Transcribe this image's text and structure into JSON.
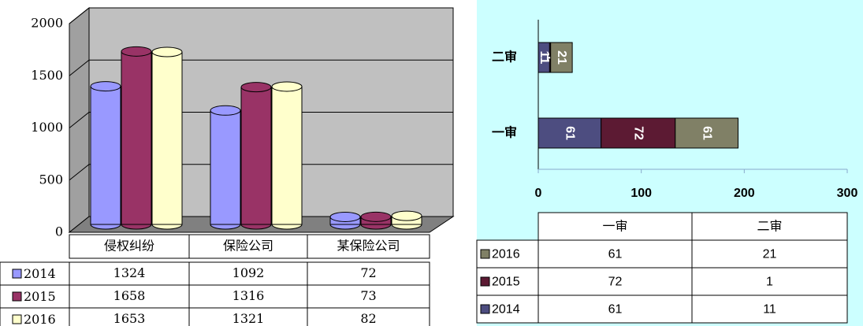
{
  "chart_data": [
    {
      "type": "bar3d",
      "categories": [
        "侵权纠纷",
        "保险公司",
        "某保险公司"
      ],
      "series": [
        {
          "name": "2014",
          "color": "#9999ff",
          "values": [
            1324,
            1092,
            72
          ]
        },
        {
          "name": "2015",
          "color": "#993366",
          "values": [
            1658,
            1316,
            73
          ]
        },
        {
          "name": "2016",
          "color": "#ffffcc",
          "values": [
            1653,
            1321,
            82
          ]
        }
      ],
      "ylim": [
        0,
        2000
      ],
      "yticks": [
        0,
        500,
        1000,
        1500,
        2000
      ],
      "grid": true
    },
    {
      "type": "stacked_hbar",
      "categories": [
        "一审",
        "二审"
      ],
      "series": [
        {
          "name": "2014",
          "color": "#4d4d80",
          "values": [
            61,
            11
          ]
        },
        {
          "name": "2015",
          "color": "#5c1a33",
          "values": [
            72,
            1
          ]
        },
        {
          "name": "2016",
          "color": "#808066",
          "values": [
            61,
            21
          ]
        }
      ],
      "xlim": [
        0,
        300
      ],
      "xticks": [
        0,
        100,
        200,
        300
      ]
    }
  ]
}
